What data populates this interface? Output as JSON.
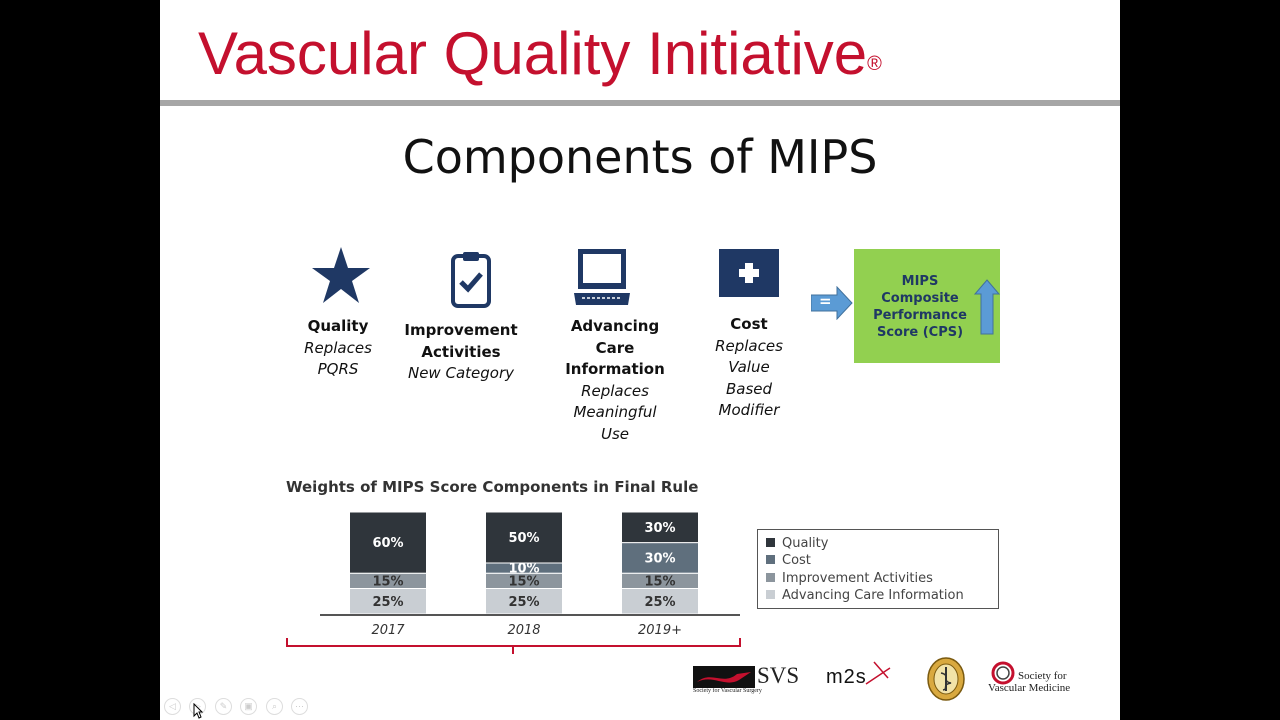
{
  "header": {
    "brand": "Vascular Quality Initiative",
    "brand_mark": "®"
  },
  "slide_title": "Components of MIPS",
  "components": [
    {
      "icon": "star-icon",
      "name": [
        "Quality"
      ],
      "desc": [
        "Replaces",
        "PQRS"
      ]
    },
    {
      "icon": "clipboard-check-icon",
      "name": [
        "Improvement",
        "Activities"
      ],
      "desc": [
        "New Category"
      ]
    },
    {
      "icon": "laptop-icon",
      "name": [
        "Advancing",
        "Care",
        "Information"
      ],
      "desc": [
        "Replaces",
        "Meaningful",
        "Use"
      ]
    },
    {
      "icon": "medical-cross-icon",
      "name": [
        "Cost"
      ],
      "desc": [
        "Replaces",
        "Value",
        "Based",
        "Modifier"
      ]
    }
  ],
  "equals_arrow": {
    "icon": "equals-arrow-icon",
    "label": "="
  },
  "cps": {
    "lines": [
      "MIPS",
      "Composite",
      "Performance",
      "Score (CPS)"
    ],
    "icon": "up-arrow-icon",
    "color": "#92d050"
  },
  "chart_title": "Weights of MIPS Score Components in Final Rule",
  "chart_data": {
    "type": "bar",
    "stacked": true,
    "title": "Weights of MIPS Score Components in Final Rule",
    "categories": [
      "2017",
      "2018",
      "2019+"
    ],
    "series": [
      {
        "name": "Advancing Care Information",
        "values": [
          25,
          25,
          25
        ],
        "labels": [
          "25%",
          "25%",
          "25%"
        ],
        "color": "#c9ced3"
      },
      {
        "name": "Improvement Activities",
        "values": [
          15,
          15,
          15
        ],
        "labels": [
          "15%",
          "15%",
          "15%"
        ],
        "color": "#8c959d"
      },
      {
        "name": "Cost",
        "values": [
          0,
          10,
          30
        ],
        "labels": [
          "",
          "10%",
          "30%"
        ],
        "color": "#5f6f7d"
      },
      {
        "name": "Quality",
        "values": [
          60,
          50,
          30
        ],
        "labels": [
          "60%",
          "50%",
          "30%"
        ],
        "color": "#2f353b"
      }
    ],
    "ylim": [
      0,
      100
    ],
    "legend_position": "right",
    "grid": false
  },
  "legend": [
    {
      "label": "Quality",
      "color": "#2f353b"
    },
    {
      "label": "Cost",
      "color": "#5f6f7d"
    },
    {
      "label": "Improvement Activities",
      "color": "#8c959d"
    },
    {
      "label": "Advancing Care Information",
      "color": "#c9ced3"
    }
  ],
  "logos": [
    {
      "name": "svs-logo",
      "text": "SVS",
      "subtitle": "Society for Vascular Surgery"
    },
    {
      "name": "m2s-logo",
      "text": "m2s"
    },
    {
      "name": "seal-logo"
    },
    {
      "name": "svm-logo",
      "text": [
        "Society for",
        "Vascular Medicine"
      ]
    }
  ],
  "toolbar": [
    {
      "icon": "previous-icon",
      "glyph": "◁"
    },
    {
      "icon": "next-icon",
      "glyph": "▷"
    },
    {
      "icon": "pen-icon",
      "glyph": "✎"
    },
    {
      "icon": "slides-icon",
      "glyph": "▣"
    },
    {
      "icon": "zoom-icon",
      "glyph": "⌕"
    },
    {
      "icon": "more-icon",
      "glyph": "⋯"
    }
  ]
}
